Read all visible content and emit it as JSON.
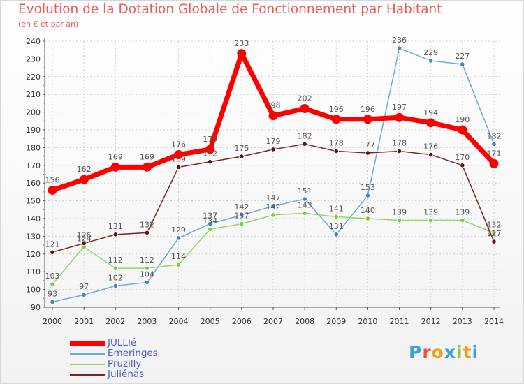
{
  "header": {
    "title": "Evolution de la Dotation Globale de Fonctionnement par Habitant",
    "subtitle": "(en € et par an)"
  },
  "colors": {
    "title": "#ee5a5a",
    "axis": "#555555",
    "label": "#555555",
    "legend_text": "#4a59d6"
  },
  "logo": {
    "letters": [
      {
        "char": "P",
        "color": "#3aa0d8"
      },
      {
        "char": "r",
        "color": "#e05a3a"
      },
      {
        "char": "o",
        "color": "#f0a020"
      },
      {
        "char": "x",
        "color": "#3aa0d8"
      },
      {
        "char": "i",
        "color": "#8cc63e"
      },
      {
        "char": "t",
        "color": "#f0a020"
      },
      {
        "char": "i",
        "color": "#3aa0d8"
      }
    ]
  },
  "chart_data": {
    "type": "line",
    "title": "Evolution de la Dotation Globale de Fonctionnement par Habitant",
    "subtitle": "(en € et par an)",
    "xlabel": "",
    "ylabel": "",
    "x": [
      "2000",
      "2001",
      "2002",
      "2003",
      "2004",
      "2005",
      "2006",
      "2007",
      "2008",
      "2009",
      "2010",
      "2011",
      "2012",
      "2013",
      "2014"
    ],
    "ylim": [
      90,
      240
    ],
    "yticks": [
      "90",
      "100",
      "110",
      "120",
      "130",
      "140",
      "150",
      "160",
      "170",
      "180",
      "190",
      "200",
      "210",
      "220",
      "230",
      "240"
    ],
    "grid": true,
    "legend_position": "bottom-left",
    "series": [
      {
        "name": "Emeringes",
        "color": "#6fa8dc",
        "marker_color": "#3d85c6",
        "values": [
          93,
          97,
          102,
          104,
          129,
          137,
          142,
          147,
          151,
          131,
          153,
          236,
          229,
          227,
          182
        ],
        "labels": [
          "93",
          "97",
          "102",
          "104",
          "129",
          "137",
          "142",
          "147",
          "151",
          "131",
          "153",
          "236",
          "229",
          "227",
          "182"
        ]
      },
      {
        "name": "Pruzilly",
        "color": "#93d36c",
        "marker_color": "#7ccc3c",
        "values": [
          103,
          124,
          112,
          112,
          114,
          134,
          137,
          142,
          143,
          141,
          140,
          139,
          139,
          139,
          132
        ],
        "labels": [
          "103",
          "124",
          "112",
          "112",
          "114",
          "134",
          "137",
          "142",
          "143",
          "141",
          "140",
          "139",
          "139",
          "139",
          "132"
        ]
      },
      {
        "name": "Juliénas",
        "color": "#7a2626",
        "marker_color": "#5a1515",
        "values": [
          121,
          126,
          131,
          132,
          169,
          172,
          175,
          179,
          182,
          178,
          177,
          178,
          176,
          170,
          127
        ],
        "labels": [
          "121",
          "126",
          "131",
          "132",
          "169",
          "172",
          "175",
          "179",
          "182",
          "178",
          "177",
          "178",
          "176",
          "170",
          "127"
        ]
      },
      {
        "name": "JULLIé",
        "color": "#ff0000",
        "marker_color": "#ff0000",
        "values": [
          156,
          162,
          169,
          169,
          176,
          179,
          233,
          198,
          202,
          196,
          196,
          197,
          194,
          190,
          171
        ],
        "labels": [
          "156",
          "162",
          "169",
          "169",
          "176",
          "179",
          "233",
          "198",
          "202",
          "196",
          "196",
          "197",
          "194",
          "190",
          "171"
        ]
      }
    ]
  },
  "legend": {
    "items": [
      {
        "label": "JULLIé",
        "color": "#ff0000"
      },
      {
        "label": "Emeringes",
        "color": "#6fa8dc"
      },
      {
        "label": "Pruzilly",
        "color": "#93d36c"
      },
      {
        "label": "Juliénas",
        "color": "#7a2626"
      }
    ]
  }
}
